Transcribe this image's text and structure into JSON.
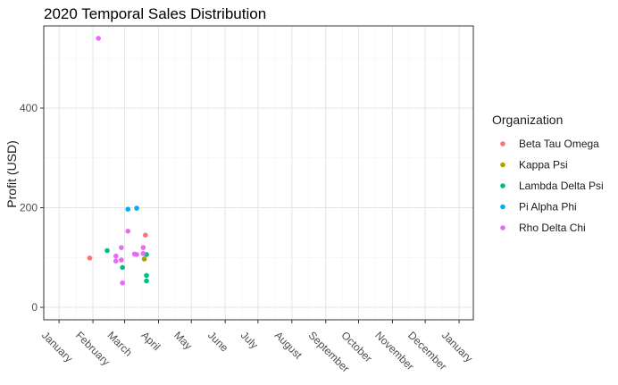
{
  "chart_data": {
    "type": "scatter",
    "title": "2020 Temporal Sales Distribution",
    "xlabel": "",
    "ylabel": "Profit (USD)",
    "x_tick_labels": [
      "January",
      "February",
      "March",
      "April",
      "May",
      "June",
      "July",
      "August",
      "September",
      "October",
      "November",
      "December",
      "January"
    ],
    "x_ticks": [
      "2020-01-01",
      "2020-02-01",
      "2020-03-01",
      "2020-04-01",
      "2020-05-01",
      "2020-06-01",
      "2020-07-01",
      "2020-08-01",
      "2020-09-01",
      "2020-10-01",
      "2020-11-01",
      "2020-12-01",
      "2021-01-01"
    ],
    "xlim": [
      "2019-12-18",
      "2021-01-14"
    ],
    "y_ticks": [
      0,
      200,
      400
    ],
    "ylim": [
      -25,
      565
    ],
    "grid": true,
    "legend_title": "Organization",
    "legend_position": "right",
    "series": [
      {
        "name": "Beta Tau Omega",
        "color": "#F8766D",
        "points": [
          {
            "x": "2020-01-29",
            "y": 99
          },
          {
            "x": "2020-03-20",
            "y": 145
          }
        ]
      },
      {
        "name": "Kappa Psi",
        "color": "#A3A500",
        "points": [
          {
            "x": "2020-03-19",
            "y": 97
          }
        ]
      },
      {
        "name": "Lambda Delta Psi",
        "color": "#00BF7D",
        "points": [
          {
            "x": "2020-02-14",
            "y": 114
          },
          {
            "x": "2020-02-28",
            "y": 80
          },
          {
            "x": "2020-03-21",
            "y": 106
          },
          {
            "x": "2020-03-21",
            "y": 64
          },
          {
            "x": "2020-03-21",
            "y": 53
          }
        ]
      },
      {
        "name": "Pi Alpha Phi",
        "color": "#00B0F6",
        "points": [
          {
            "x": "2020-03-04",
            "y": 197
          },
          {
            "x": "2020-03-12",
            "y": 199
          }
        ]
      },
      {
        "name": "Rho Delta Chi",
        "color": "#E76BF3",
        "points": [
          {
            "x": "2020-02-06",
            "y": 540
          },
          {
            "x": "2020-02-22",
            "y": 103
          },
          {
            "x": "2020-02-22",
            "y": 93
          },
          {
            "x": "2020-02-27",
            "y": 120
          },
          {
            "x": "2020-02-27",
            "y": 95
          },
          {
            "x": "2020-02-28",
            "y": 49
          },
          {
            "x": "2020-03-04",
            "y": 153
          },
          {
            "x": "2020-03-10",
            "y": 107
          },
          {
            "x": "2020-03-12",
            "y": 106
          },
          {
            "x": "2020-03-18",
            "y": 120
          },
          {
            "x": "2020-03-18",
            "y": 108
          }
        ]
      }
    ]
  }
}
